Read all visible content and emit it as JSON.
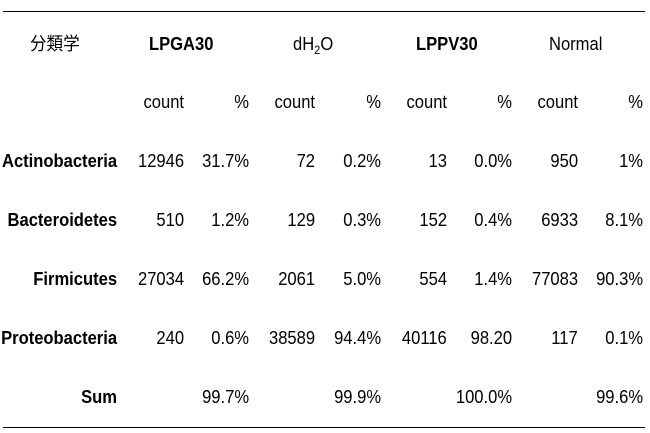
{
  "table": {
    "corner_label": "分類学",
    "groups": [
      "LPGA30",
      "dH",
      "2",
      "O",
      "LPPV30",
      "Normal"
    ],
    "subheaders": [
      "count",
      "%"
    ],
    "rows": [
      {
        "label": "Actinobacteria",
        "cells": [
          "12946",
          "31.7%",
          "72",
          "0.2%",
          "13",
          "0.0%",
          "950",
          "1%"
        ]
      },
      {
        "label": "Bacteroidetes",
        "cells": [
          "510",
          "1.2%",
          "129",
          "0.3%",
          "152",
          "0.4%",
          "6933",
          "8.1%"
        ]
      },
      {
        "label": "Firmicutes",
        "cells": [
          "27034",
          "66.2%",
          "2061",
          "5.0%",
          "554",
          "1.4%",
          "77083",
          "90.3%"
        ]
      },
      {
        "label": "Proteobacteria",
        "cells": [
          "240",
          "0.6%",
          "38589",
          "94.4%",
          "40116",
          "98.20",
          "117",
          "0.1%"
        ]
      },
      {
        "label": "Sum",
        "cells": [
          "",
          "99.7%",
          "",
          "99.9%",
          "",
          "100.0%",
          "",
          "99.6%"
        ]
      }
    ]
  }
}
